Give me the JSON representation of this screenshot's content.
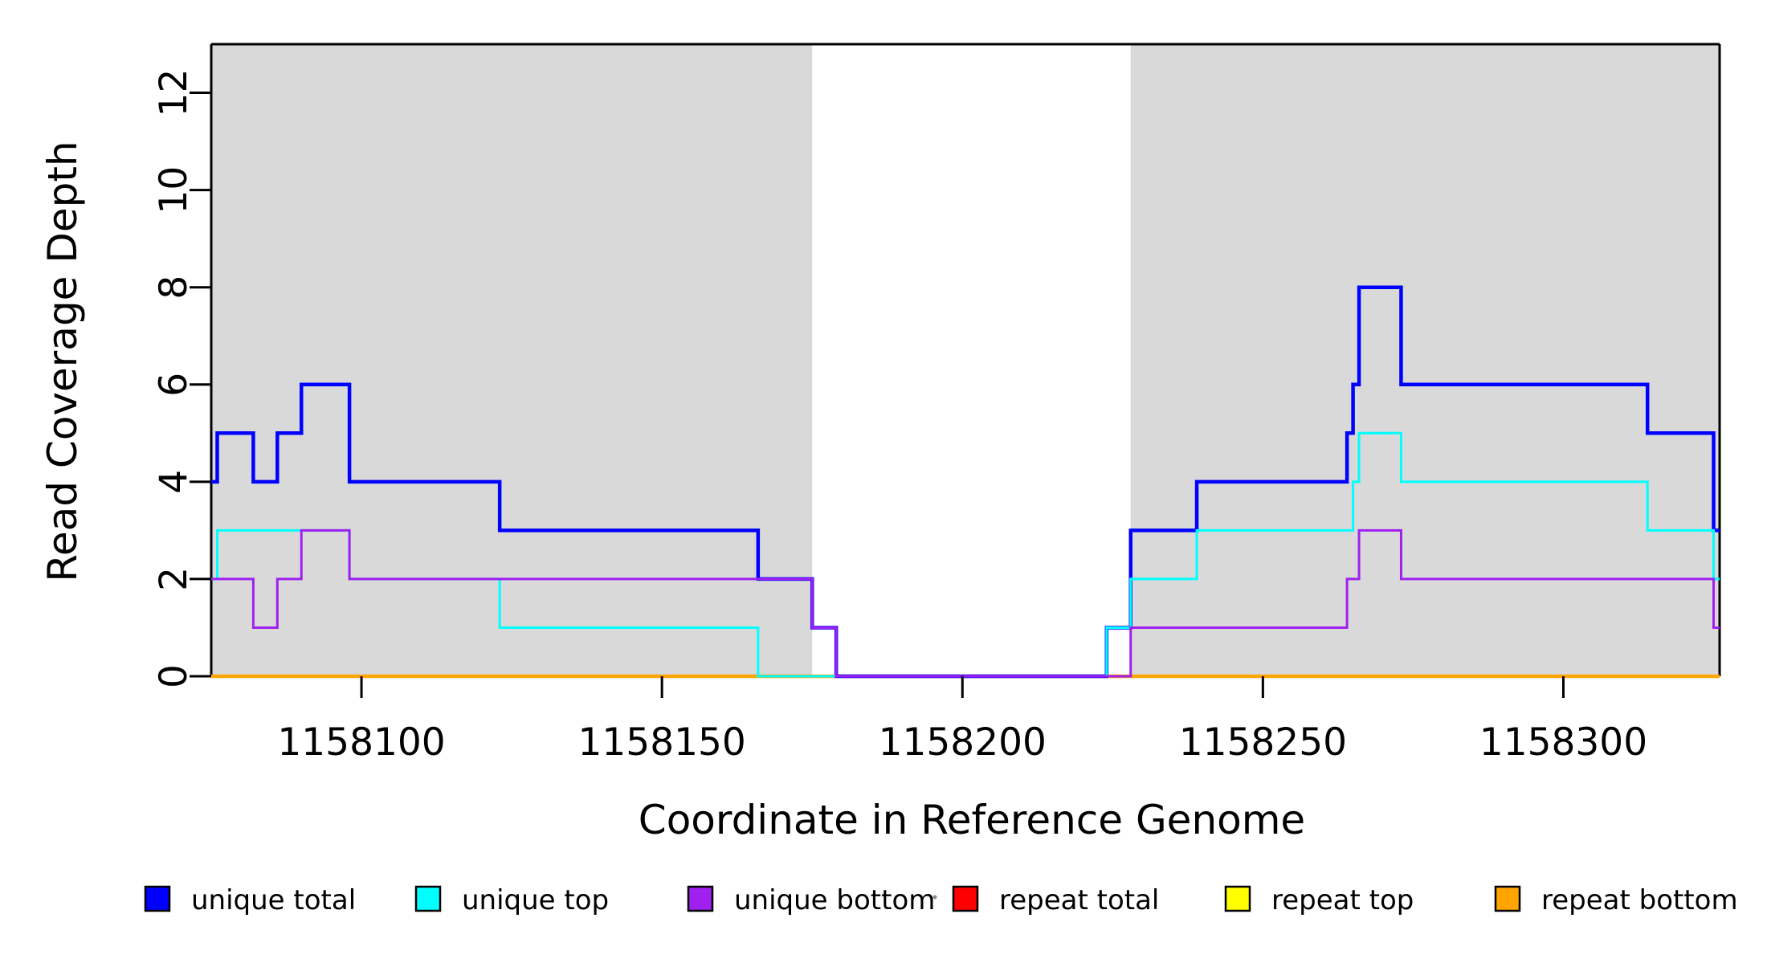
{
  "chart_data": {
    "type": "line",
    "subtype": "step-post",
    "title": "",
    "xlabel": "Coordinate in Reference Genome",
    "ylabel": "Read Coverage Depth",
    "xlim": [
      1158075,
      1158326
    ],
    "ylim": [
      0,
      13
    ],
    "x_ticks": [
      1158100,
      1158150,
      1158200,
      1158250,
      1158300
    ],
    "y_ticks": [
      0,
      2,
      4,
      6,
      8,
      10,
      12
    ],
    "grid": false,
    "legend_position": "bottom",
    "shaded_regions": [
      {
        "x0": 1158075,
        "x1": 1158175,
        "color": "#d9d9d9"
      },
      {
        "x0": 1158228,
        "x1": 1158326,
        "color": "#d9d9d9"
      }
    ],
    "series": [
      {
        "name": "unique total",
        "color": "#0000ff",
        "line_width": 4.5,
        "steps": [
          [
            1158075,
            4
          ],
          [
            1158076,
            5
          ],
          [
            1158082,
            4
          ],
          [
            1158086,
            5
          ],
          [
            1158090,
            6
          ],
          [
            1158098,
            4
          ],
          [
            1158123,
            3
          ],
          [
            1158166,
            2
          ],
          [
            1158175,
            1
          ],
          [
            1158179,
            0
          ],
          [
            1158224,
            1
          ],
          [
            1158228,
            3
          ],
          [
            1158239,
            4
          ],
          [
            1158264,
            5
          ],
          [
            1158265,
            6
          ],
          [
            1158266,
            8
          ],
          [
            1158273,
            6
          ],
          [
            1158314,
            5
          ],
          [
            1158325,
            3
          ]
        ],
        "x_end": 1158326
      },
      {
        "name": "unique top",
        "color": "#00ffff",
        "line_width": 3,
        "steps": [
          [
            1158075,
            2
          ],
          [
            1158076,
            3
          ],
          [
            1158098,
            2
          ],
          [
            1158123,
            1
          ],
          [
            1158166,
            0
          ],
          [
            1158224,
            1
          ],
          [
            1158228,
            2
          ],
          [
            1158239,
            3
          ],
          [
            1158265,
            4
          ],
          [
            1158266,
            5
          ],
          [
            1158273,
            4
          ],
          [
            1158314,
            3
          ],
          [
            1158325,
            2
          ]
        ],
        "x_end": 1158326
      },
      {
        "name": "unique bottom",
        "color": "#a020f0",
        "line_width": 3,
        "steps": [
          [
            1158075,
            2
          ],
          [
            1158082,
            1
          ],
          [
            1158086,
            2
          ],
          [
            1158090,
            3
          ],
          [
            1158098,
            2
          ],
          [
            1158175,
            1
          ],
          [
            1158179,
            0
          ],
          [
            1158228,
            1
          ],
          [
            1158264,
            2
          ],
          [
            1158266,
            3
          ],
          [
            1158273,
            2
          ],
          [
            1158325,
            1
          ]
        ],
        "x_end": 1158326
      },
      {
        "name": "repeat total",
        "color": "#ff0000",
        "line_width": 3.5,
        "steps": [
          [
            1158075,
            0
          ]
        ],
        "x_end": 1158326
      },
      {
        "name": "repeat top",
        "color": "#ffff00",
        "line_width": 3.5,
        "steps": [
          [
            1158075,
            0
          ]
        ],
        "x_end": 1158326
      },
      {
        "name": "repeat bottom",
        "color": "#ffa500",
        "line_width": 4.5,
        "steps": [
          [
            1158075,
            0
          ]
        ],
        "x_end": 1158326
      }
    ],
    "draw_order": [
      3,
      4,
      5,
      0,
      1,
      2
    ],
    "legend": [
      {
        "label": "unique total",
        "color": "#0000ff"
      },
      {
        "label": "unique top",
        "color": "#00ffff"
      },
      {
        "label": "unique bottom",
        "color": "#a020f0"
      },
      {
        "label": "repeat total",
        "color": "#ff0000"
      },
      {
        "label": "repeat top",
        "color": "#ffff00"
      },
      {
        "label": "repeat bottom",
        "color": "#ffa500"
      }
    ],
    "frame_color": "#000000",
    "background_color": "#ffffff"
  }
}
